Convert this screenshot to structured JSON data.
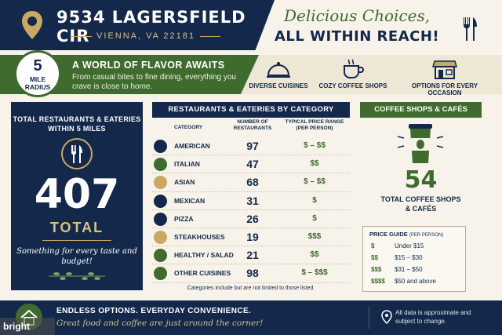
{
  "header": {
    "address": "9534 LAGERSFIELD CIR",
    "city": "VIENNA, VA 22181",
    "tagline_script": "Delicious Choices,",
    "tagline_main": "ALL WITHIN REACH!"
  },
  "band": {
    "radius_number": "5",
    "radius_line1": "MILE",
    "radius_line2": "RADIUS",
    "title": "A WORLD OF FLAVOR AWAITS",
    "subtitle": "From casual bites to fine dining, everything you crave is close to home.",
    "features": [
      {
        "label": "DIVERSE CUISINES",
        "icon": "cloche-icon"
      },
      {
        "label": "COZY COFFEE SHOPS",
        "icon": "coffee-cup-icon"
      },
      {
        "label": "OPTIONS FOR EVERY OCCASION",
        "icon": "storefront-icon"
      }
    ]
  },
  "summary": {
    "title": "TOTAL RESTAURANTS & EATERIES WITHIN 5 MILES",
    "total": "407",
    "total_label": "TOTAL",
    "note": "Something for every taste and budget!"
  },
  "table": {
    "title": "RESTAURANTS & EATERIES BY CATEGORY",
    "col_category": "CATEGORY",
    "col_number": "NUMBER OF RESTAURANTS",
    "col_price": "TYPICAL PRICE RANGE (PER PERSON)",
    "rows": [
      {
        "category": "AMERICAN",
        "count": "97",
        "price": "$ – $$"
      },
      {
        "category": "ITALIAN",
        "count": "47",
        "price": "$$"
      },
      {
        "category": "ASIAN",
        "count": "68",
        "price": "$ – $$"
      },
      {
        "category": "MEXICAN",
        "count": "31",
        "price": "$"
      },
      {
        "category": "PIZZA",
        "count": "26",
        "price": "$"
      },
      {
        "category": "STEAKHOUSES",
        "count": "19",
        "price": "$$$"
      },
      {
        "category": "HEALTHY / SALAD",
        "count": "21",
        "price": "$$"
      },
      {
        "category": "OTHER CUISINES",
        "count": "98",
        "price": "$ – $$$"
      }
    ],
    "footnote": "Categories include but are not limited to those listed."
  },
  "coffee": {
    "title": "COFFEE SHOPS & CAFÉS",
    "count": "54",
    "label_line1": "TOTAL COFFEE SHOPS",
    "label_line2": "& CAFÉS"
  },
  "price_guide": {
    "title": "PRICE GUIDE",
    "title_note": "(PER PERSON)",
    "items": [
      {
        "symbol": "$",
        "range": "Under $15"
      },
      {
        "symbol": "$$",
        "range": "$15 – $30"
      },
      {
        "symbol": "$$$",
        "range": "$31 – $50"
      },
      {
        "symbol": "$$$$",
        "range": "$50 and above"
      }
    ]
  },
  "footer": {
    "line1": "ENDLESS OPTIONS. EVERYDAY CONVENIENCE.",
    "line2": "Great food and coffee are just around the corner!",
    "note": "All data is approximate and subject to change.",
    "watermark": "bright"
  },
  "colors": {
    "navy": "#13284a",
    "green": "#3f6b2e",
    "gold": "#c9a962",
    "cream": "#f7f3ea"
  }
}
